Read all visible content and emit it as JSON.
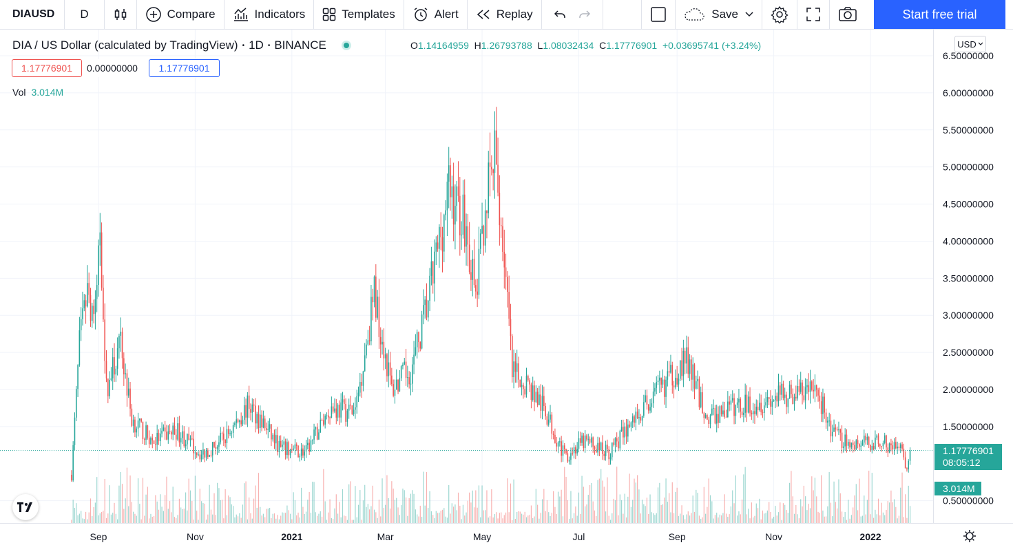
{
  "toolbar": {
    "symbol": "DIAUSD",
    "interval": "D",
    "compare_label": "Compare",
    "indicators_label": "Indicators",
    "templates_label": "Templates",
    "alert_label": "Alert",
    "replay_label": "Replay",
    "save_label": "Save",
    "trial_label": "Start free trial"
  },
  "legend": {
    "title": "DIA / US Dollar (calculated by TradingView)",
    "interval": "1D",
    "exchange": "BINANCE",
    "open_key": "O",
    "open": "1.14164959",
    "high_key": "H",
    "high": "1.26793788",
    "low_key": "L",
    "low": "1.08032434",
    "close_key": "C",
    "close": "1.17776901",
    "change": "+0.03695741 (+3.24%)",
    "pill_bid": "1.17776901",
    "pill_spread": "0.00000000",
    "pill_ask": "1.17776901",
    "vol_label": "Vol",
    "vol_value": "3.014M"
  },
  "currency": "USD",
  "price_axis": {
    "ticks": [
      "6.50000000",
      "6.00000000",
      "5.50000000",
      "5.00000000",
      "4.50000000",
      "4.00000000",
      "3.50000000",
      "3.00000000",
      "2.50000000",
      "2.00000000",
      "1.50000000",
      "0.50000000"
    ],
    "last_price": "1.17776901",
    "countdown": "08:05:12",
    "volume_tag": "3.014M"
  },
  "time_axis": {
    "labels": [
      "Sep",
      "Nov",
      "2021",
      "Mar",
      "May",
      "Jul",
      "Sep",
      "Nov",
      "2022"
    ]
  },
  "colors": {
    "up": "#26a69a",
    "down": "#ef5350",
    "accent": "#2962ff"
  },
  "chart_data": {
    "type": "candlestick",
    "symbol": "DIA / US Dollar",
    "interval": "1D",
    "ylim": [
      0.2,
      6.5
    ],
    "anchors": [
      {
        "date": "2020-08-15",
        "close": 0.85
      },
      {
        "date": "2020-08-20",
        "close": 2.6
      },
      {
        "date": "2020-08-25",
        "close": 3.3
      },
      {
        "date": "2020-08-30",
        "close": 3.0
      },
      {
        "date": "2020-09-02",
        "close": 4.2
      },
      {
        "date": "2020-09-06",
        "close": 2.0
      },
      {
        "date": "2020-09-15",
        "close": 2.6
      },
      {
        "date": "2020-09-22",
        "close": 1.6
      },
      {
        "date": "2020-10-05",
        "close": 1.3
      },
      {
        "date": "2020-10-20",
        "close": 1.45
      },
      {
        "date": "2020-11-05",
        "close": 1.12
      },
      {
        "date": "2020-11-20",
        "close": 1.35
      },
      {
        "date": "2020-12-05",
        "close": 1.8
      },
      {
        "date": "2020-12-25",
        "close": 1.2
      },
      {
        "date": "2021-01-10",
        "close": 1.15
      },
      {
        "date": "2021-01-25",
        "close": 1.75
      },
      {
        "date": "2021-02-10",
        "close": 1.7
      },
      {
        "date": "2021-02-22",
        "close": 3.3
      },
      {
        "date": "2021-03-05",
        "close": 2.0
      },
      {
        "date": "2021-03-18",
        "close": 2.3
      },
      {
        "date": "2021-03-28",
        "close": 3.2
      },
      {
        "date": "2021-04-10",
        "close": 4.7
      },
      {
        "date": "2021-04-20",
        "close": 4.3
      },
      {
        "date": "2021-04-27",
        "close": 3.2
      },
      {
        "date": "2021-05-03",
        "close": 4.5
      },
      {
        "date": "2021-05-09",
        "close": 5.1
      },
      {
        "date": "2021-05-15",
        "close": 3.8
      },
      {
        "date": "2021-05-20",
        "close": 2.2
      },
      {
        "date": "2021-05-29",
        "close": 2.1
      },
      {
        "date": "2021-06-10",
        "close": 1.7
      },
      {
        "date": "2021-06-22",
        "close": 1.1
      },
      {
        "date": "2021-07-05",
        "close": 1.3
      },
      {
        "date": "2021-07-20",
        "close": 1.15
      },
      {
        "date": "2021-08-05",
        "close": 1.6
      },
      {
        "date": "2021-08-25",
        "close": 2.1
      },
      {
        "date": "2021-09-07",
        "close": 2.4
      },
      {
        "date": "2021-09-20",
        "close": 1.6
      },
      {
        "date": "2021-10-05",
        "close": 1.75
      },
      {
        "date": "2021-10-25",
        "close": 1.85
      },
      {
        "date": "2021-11-15",
        "close": 1.95
      },
      {
        "date": "2021-11-28",
        "close": 2.0
      },
      {
        "date": "2021-12-08",
        "close": 1.4
      },
      {
        "date": "2021-12-20",
        "close": 1.25
      },
      {
        "date": "2022-01-05",
        "close": 1.3
      },
      {
        "date": "2022-01-20",
        "close": 1.2
      },
      {
        "date": "2022-01-24",
        "close": 0.85
      },
      {
        "date": "2022-01-26",
        "close": 1.18
      }
    ],
    "volume_last": "3.014M"
  }
}
